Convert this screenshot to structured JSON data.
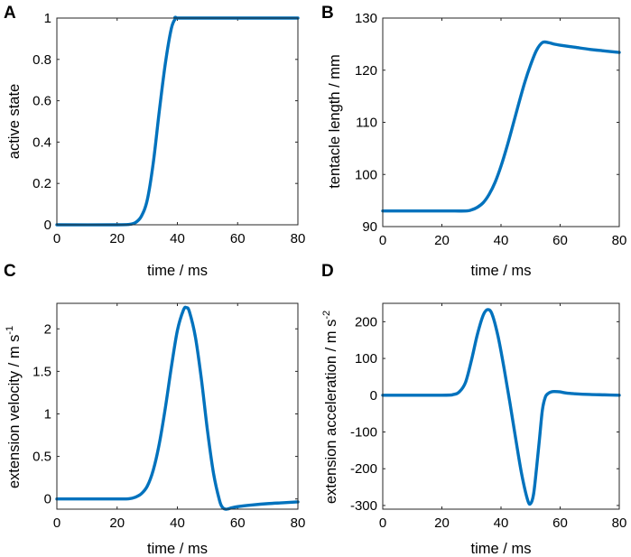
{
  "colors": {
    "line": "#0072BD",
    "axis": "#262626",
    "background": "#ffffff"
  },
  "chart_data": [
    {
      "type": "line",
      "panel": "A",
      "title": "",
      "xlabel": "time / ms",
      "ylabel": "active state",
      "xlim": [
        0,
        80
      ],
      "ylim": [
        0,
        1
      ],
      "xticks": [
        0,
        20,
        40,
        60,
        80
      ],
      "xtick_labels": [
        "0",
        "20",
        "40",
        "60",
        "80"
      ],
      "yticks": [
        0,
        0.2,
        0.4,
        0.6,
        0.8,
        1
      ],
      "ytick_labels": [
        "0",
        "0.2",
        "0.4",
        "0.6",
        "0.8",
        "1"
      ],
      "grid": false,
      "series": [
        {
          "name": "active state",
          "x": [
            0,
            20,
            24,
            26,
            28,
            30,
            32,
            34,
            36,
            38,
            39.5,
            40,
            50,
            60,
            70,
            80
          ],
          "y": [
            0,
            0,
            0.002,
            0.01,
            0.04,
            0.12,
            0.3,
            0.55,
            0.78,
            0.95,
            1,
            1,
            1,
            1,
            1,
            1
          ]
        }
      ]
    },
    {
      "type": "line",
      "panel": "B",
      "title": "",
      "xlabel": "time / ms",
      "ylabel": "tentacle length / mm",
      "xlim": [
        0,
        80
      ],
      "ylim": [
        90,
        130
      ],
      "xticks": [
        0,
        20,
        40,
        60,
        80
      ],
      "xtick_labels": [
        "0",
        "20",
        "40",
        "60",
        "80"
      ],
      "yticks": [
        90,
        100,
        110,
        120,
        130
      ],
      "ytick_labels": [
        "90",
        "100",
        "110",
        "120",
        "130"
      ],
      "grid": false,
      "series": [
        {
          "name": "tentacle length",
          "x": [
            0,
            20,
            28,
            30,
            32,
            34,
            36,
            38,
            40,
            42,
            44,
            46,
            48,
            50,
            52,
            54,
            56,
            58,
            60,
            65,
            70,
            75,
            80
          ],
          "y": [
            93,
            93,
            93,
            93.2,
            93.7,
            94.6,
            96.2,
            98.5,
            101.6,
            105.3,
            109.4,
            113.6,
            117.6,
            121,
            123.8,
            125.3,
            125.3,
            125.0,
            124.8,
            124.4,
            124.0,
            123.7,
            123.4
          ]
        }
      ]
    },
    {
      "type": "line",
      "panel": "C",
      "title": "",
      "xlabel": "time / ms",
      "ylabel": "extension velocity / m s",
      "ylabel_superscript": "-1",
      "xlim": [
        0,
        80
      ],
      "ylim": [
        -0.12,
        2.3
      ],
      "xticks": [
        0,
        20,
        40,
        60,
        80
      ],
      "xtick_labels": [
        "0",
        "20",
        "40",
        "60",
        "80"
      ],
      "yticks": [
        0,
        0.5,
        1,
        1.5,
        2
      ],
      "ytick_labels": [
        "0",
        "0.5",
        "1",
        "1.5",
        "2"
      ],
      "grid": false,
      "series": [
        {
          "name": "extension velocity",
          "x": [
            0,
            20,
            24,
            26,
            28,
            30,
            32,
            34,
            36,
            38,
            40,
            42,
            43,
            44,
            46,
            48,
            50,
            52,
            54,
            55,
            56,
            57,
            58,
            60,
            65,
            70,
            75,
            80
          ],
          "y": [
            0,
            0,
            0.003,
            0.02,
            0.06,
            0.15,
            0.34,
            0.65,
            1.07,
            1.55,
            1.98,
            2.22,
            2.25,
            2.2,
            1.9,
            1.4,
            0.8,
            0.3,
            -0.02,
            -0.1,
            -0.12,
            -0.115,
            -0.105,
            -0.09,
            -0.07,
            -0.055,
            -0.045,
            -0.035
          ]
        }
      ]
    },
    {
      "type": "line",
      "panel": "D",
      "title": "",
      "xlabel": "time / ms",
      "ylabel": "extension acceleration / m s",
      "ylabel_superscript": "-2",
      "xlim": [
        0,
        80
      ],
      "ylim": [
        -310,
        250
      ],
      "xticks": [
        0,
        20,
        40,
        60,
        80
      ],
      "xtick_labels": [
        "0",
        "20",
        "40",
        "60",
        "80"
      ],
      "yticks": [
        -300,
        -200,
        -100,
        0,
        100,
        200
      ],
      "ytick_labels": [
        "-300",
        "-200",
        "-100",
        "0",
        "100",
        "200"
      ],
      "grid": false,
      "series": [
        {
          "name": "extension acceleration",
          "x": [
            0,
            20,
            24,
            26,
            28,
            30,
            32,
            34,
            35.5,
            37,
            39,
            41,
            43,
            45,
            47,
            49,
            50,
            51,
            52,
            53,
            54,
            55,
            56,
            57,
            58,
            60,
            62,
            65,
            70,
            75,
            80
          ],
          "y": [
            0,
            0,
            2,
            10,
            35,
            95,
            165,
            218,
            233,
            220,
            160,
            75,
            -20,
            -120,
            -215,
            -285,
            -295,
            -270,
            -200,
            -120,
            -40,
            -5,
            5,
            9,
            10,
            9,
            6,
            4,
            2,
            1,
            0
          ]
        }
      ]
    }
  ]
}
